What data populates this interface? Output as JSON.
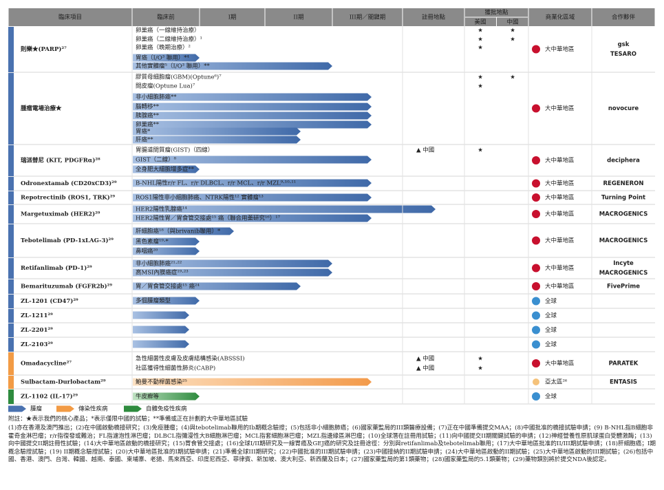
{
  "header": {
    "columns": [
      "臨床項目",
      "臨床前",
      "I期",
      "II期",
      "III期／關鍵期",
      "註冊地點",
      "獲批地點",
      "商業化區域",
      "合作夥伴"
    ],
    "approval_sub": [
      "美國",
      "中國"
    ]
  },
  "rows": [
    {
      "name": "則樂★(PARP)²⁷",
      "indications": [
        "卵巢癌（一線維持治療）",
        "卵巢癌（二線維持治療）¹",
        "卵巢癌（晚期治療）²",
        "胃癌（I/O³ 聯用）*⁴",
        "其他實體瘤⁵（I/O³ 聯用）**"
      ],
      "us": [
        "★",
        "★",
        "★"
      ],
      "cn": [
        "★",
        "★"
      ],
      "region": "大中華地區",
      "partner": [
        "gsk",
        "TESARO"
      ]
    },
    {
      "name": "腫瘤電場治療★",
      "indications": [
        "膠質母細胞瘤(GBM)(Optune⁶)⁷",
        "間皮瘤(Optune Lua)⁷",
        "非小細胞肺癌**",
        "腦轉移**",
        "胰腺癌**",
        "卵巢癌**",
        "胃癌*",
        "肝癌**"
      ],
      "us": [
        "★",
        "★"
      ],
      "cn": [
        "★"
      ],
      "region": "大中華地區",
      "partner": [
        "novocure"
      ]
    },
    {
      "name": "瑞派替尼 (KIT, PDGFRα)²⁸",
      "indications": [
        "胃腸道間質瘤(GIST)（四線）",
        "GIST（二線）⁸",
        "全身肥大細胞增多症**"
      ],
      "registration": [
        "▲ 中國"
      ],
      "us": [
        "★"
      ],
      "region": "大中華地區",
      "partner": [
        "deciphera"
      ]
    },
    {
      "name": "Odronextamab (CD20xCD3)²⁹",
      "indications": [
        "B-NHL陽性r/r FL、r/r DLBCL、r/r MCL、r/r MZL⁹·¹⁰·¹¹"
      ],
      "region": "大中華地區",
      "partner": [
        "REGENERON"
      ]
    },
    {
      "name": "Repotrectinib (ROS1, TRK)²⁹",
      "indications": [
        "ROS1陽性非小細胞肺癌、NTRK陽性¹² 實體瘤¹³"
      ],
      "region": "大中華地區",
      "partner": [
        "Turning Point"
      ]
    },
    {
      "name": "Margetuximab (HER2)²⁹",
      "indications": [
        "HER2陽性乳腺癌¹⁴",
        "HER2陽性胃／胃食管交接處¹⁵ 癌（聯合用藥研究¹⁶）¹⁷"
      ],
      "region": "大中華地區",
      "partner": [
        "MACROGENICS"
      ]
    },
    {
      "name": "Tebotelimab (PD-1xLAG-3)²⁹",
      "indications": [
        "肝細胞癌¹⁸（與brivanib聯用）*",
        "黑色素瘤¹⁹·*",
        "鼻咽癌²⁰"
      ],
      "region": "大中華地區",
      "partner": [
        "MACROGENICS"
      ]
    },
    {
      "name": "Retifanlimab (PD-1)²⁹",
      "indications": [
        "非小細胞肺癌²¹·²²",
        "高MSI內膜癌症¹⁹·²³"
      ],
      "region": "大中華地區",
      "partner": [
        "Incyte",
        "MACROGENICS"
      ]
    },
    {
      "name": "Bemarituzumab (FGFR2b)²⁹",
      "indications": [
        "胃／胃食管交接處¹⁵ 癌²⁴"
      ],
      "region": "大中華地區",
      "partner": [
        "FivePrime"
      ]
    },
    {
      "name": "ZL-1201 (CD47)²⁹",
      "indications": [
        "多個腫瘤類型"
      ],
      "region": "全球"
    },
    {
      "name": "ZL-1211²⁹",
      "region": "全球"
    },
    {
      "name": "ZL-2201²⁹",
      "region": "全球"
    },
    {
      "name": "ZL-2103²⁹",
      "region": "全球"
    },
    {
      "name": "Omadacycline²⁷",
      "indications": [
        "急性細菌性皮膚及皮膚結構感染(ABSSSI)",
        "社區獲得性細菌性肺炎(CABP)"
      ],
      "registration": [
        "▲ 中國",
        "▲ 中國"
      ],
      "us": [
        "★",
        "★"
      ],
      "region": "大中華地區",
      "partner": [
        "PARATEK"
      ]
    },
    {
      "name": "Sulbactam-Durlobactam²⁹",
      "indications": [
        "鮑曼不動桿菌感染²⁵"
      ],
      "region": "亞太區²⁶",
      "partner": [
        "ENTASIS"
      ]
    },
    {
      "name": "ZL-1102 (IL-17)²⁹",
      "indications": [
        "牛皮癬等"
      ],
      "region": "全球"
    }
  ],
  "legend": [
    "腫瘤",
    "傳染性疾病",
    "自體免疫性疾病"
  ],
  "footnotes": [
    "附註：★表示我們的核心產品；*表示僅限中國的試驗；**準備或正在計劃的大中華地區試驗",
    "(1)亦在香港及澳門推出；(2)在中國啟動橋接研究；(3)免疫腫瘤；(4)與tebotelimab聯用的Ib期概念驗證；(5)包括非小細胞肺癌；(6)國家藥監局的III類醫療設備；(7)正在中國準備提交MAA；(8)中國批准的橋接試驗申請；(9) B-NHL指B細胞非霍奇金淋巴瘤；r/r指復發或難治；FL指濾泡性淋巴瘤；DLBCL指彌漫性大B細胞淋巴瘤；MCL指套細胞淋巴瘤；MZL指邊緣區淋巴瘤；(10)全球潛在註冊用試驗；(11)向中國提交II期關鍵試驗的申請；(12)神經營養性原肌球蛋白受體激酶；(13)向中國提交II期註冊性試驗；(14)大中華地區啟動的橋接研究；(15)胃食管交接處；(16)全球I/II期研究及一線胃癌及GEJ癌的研究及註冊途徑：分別與retifanlimab及tebotelimab聯用；(17)大中華地區批准的II/III期試驗申請；(18)肝細胞癌；I期概念驗證試驗；(19) II期概念驗證試驗；(20)大中華地區批准的I期試驗申請；(21)準備全球III期研究；(22)中國批准的III期試驗申請；(23)中國接納的II期試驗申請；(24)大中華地區啟動的II期試驗；(25)大中華地區啟動的III期試驗；(26)包括中國、香港、澳門、台灣、韓國、越南、泰國、柬埔寨、老撾、馬來西亞、印度尼西亞、菲律賓、新加坡、澳大利亞、新西蘭及日本；(27)國家藥監局的第1類藥物；(28)國家藥監局的5.1類藥物；(29)藥物類別將於提交NDA後認定。"
  ]
}
